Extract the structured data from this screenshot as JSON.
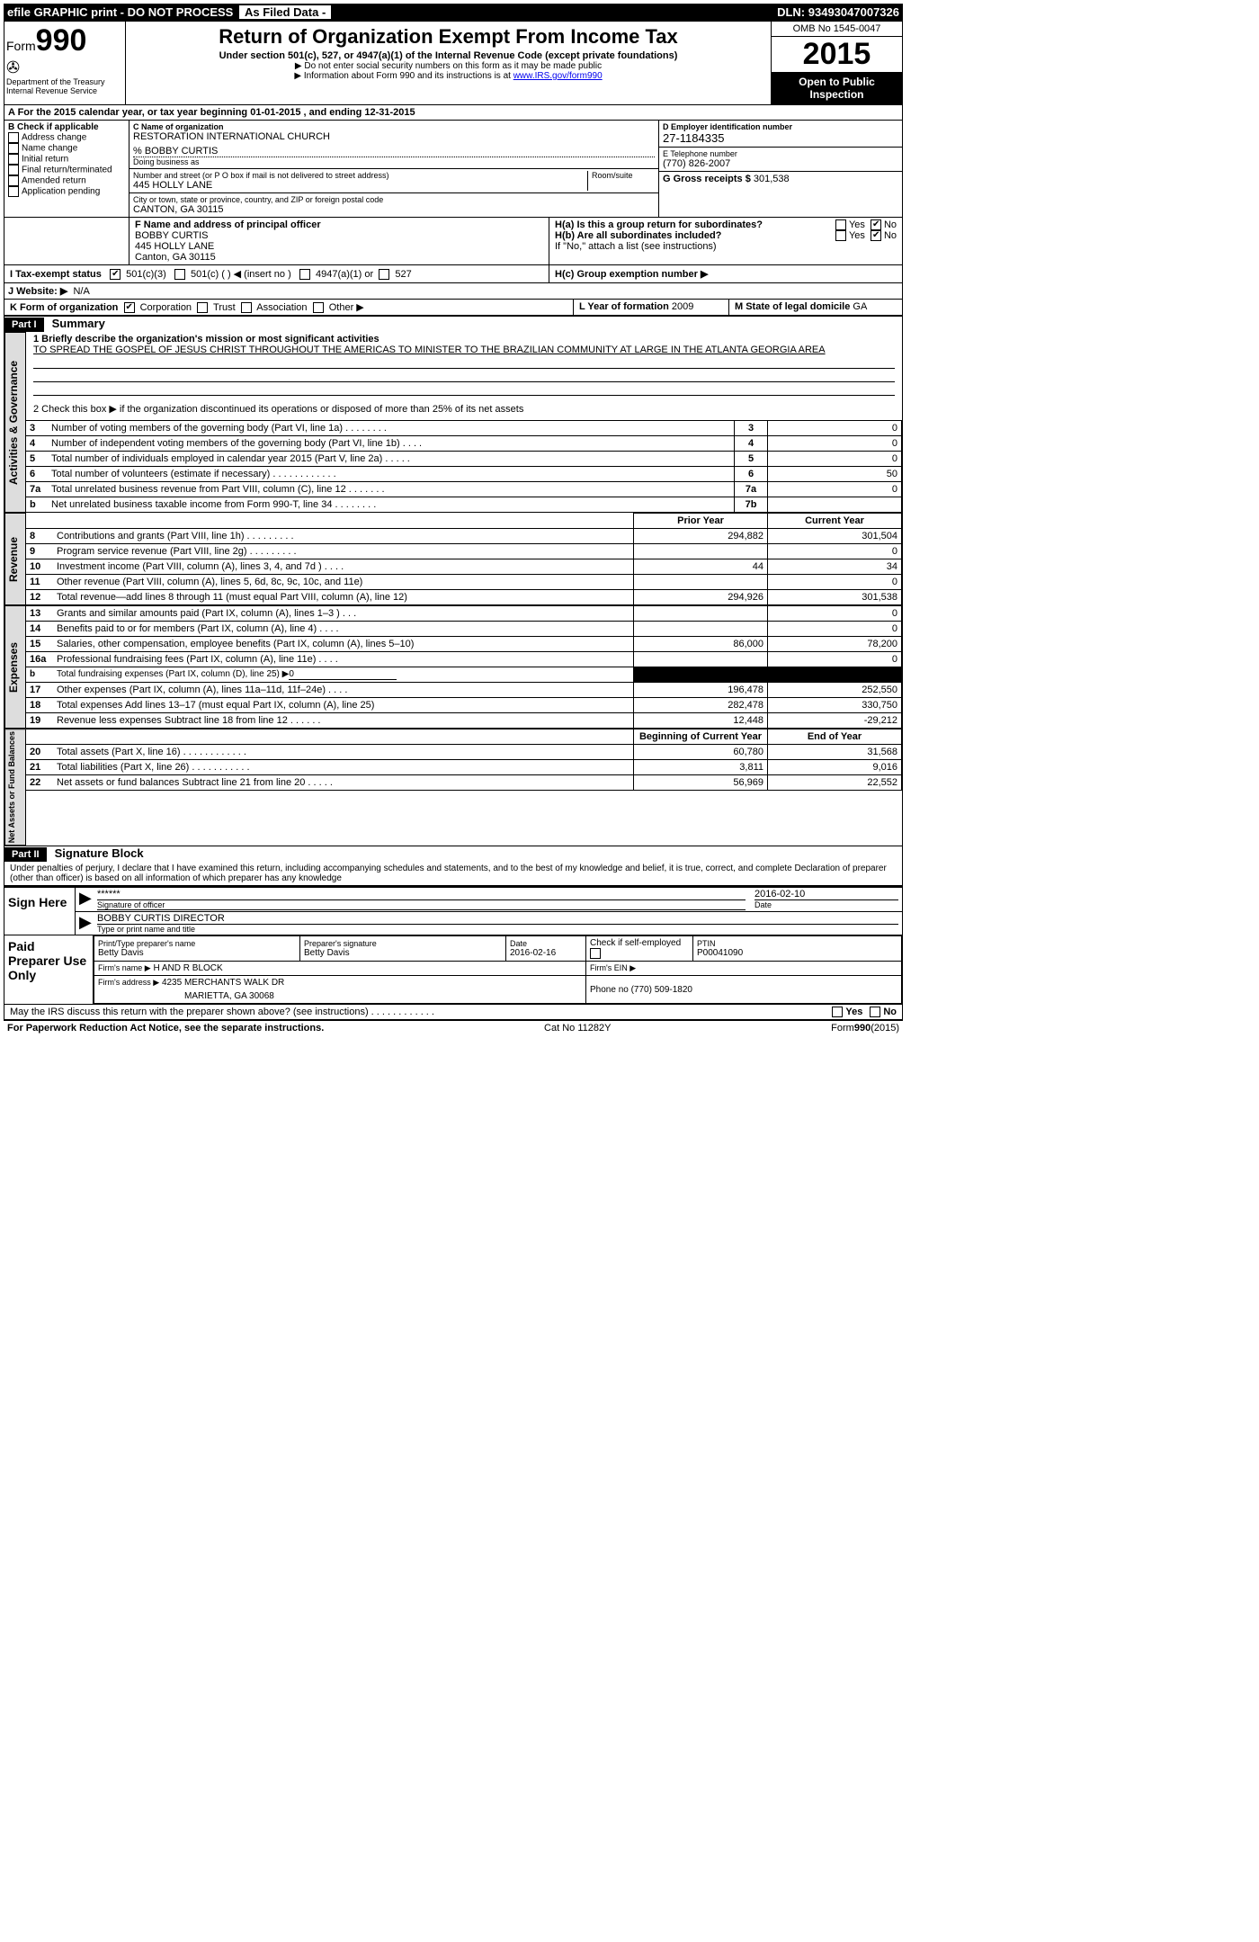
{
  "topbar": {
    "left": "efile GRAPHIC print - DO NOT PROCESS",
    "mid": "As Filed Data -",
    "dln_label": "DLN:",
    "dln": "93493047007326"
  },
  "header": {
    "form_prefix": "Form",
    "form_no": "990",
    "dept": "Department of the Treasury",
    "irs": "Internal Revenue Service",
    "title": "Return of Organization Exempt From Income Tax",
    "subtitle": "Under section 501(c), 527, or 4947(a)(1) of the Internal Revenue Code (except private foundations)",
    "note1": "▶ Do not enter social security numbers on this form as it may be made public",
    "note2_prefix": "▶ Information about Form 990 and its instructions is at ",
    "note2_link": "www.IRS.gov/form990",
    "omb": "OMB No 1545-0047",
    "year": "2015",
    "open": "Open to Public Inspection"
  },
  "lineA": {
    "prefix": "A  For the 2015 calendar year, or tax year beginning ",
    "begin": "01-01-2015",
    "mid": " , and ending ",
    "end": "12-31-2015"
  },
  "colB": {
    "heading": "B  Check if applicable",
    "items": [
      "Address change",
      "Name change",
      "Initial return",
      "Final return/terminated",
      "Amended return",
      "Application pending"
    ]
  },
  "colC": {
    "name_label": "C Name of organization",
    "name": "RESTORATION INTERNATIONAL CHURCH",
    "care_of": "% BOBBY CURTIS",
    "dba_label": "Doing business as",
    "dba": "",
    "street_label": "Number and street (or P O box if mail is not delivered to street address)",
    "room_label": "Room/suite",
    "street": "445 HOLLY LANE",
    "city_label": "City or town, state or province, country, and ZIP or foreign postal code",
    "city": "CANTON, GA  30115"
  },
  "colDE": {
    "d_label": "D Employer identification number",
    "d_value": "27-1184335",
    "e_label": "E Telephone number",
    "e_value": "(770) 826-2007",
    "g_label": "G Gross receipts $",
    "g_value": "301,538"
  },
  "fh": {
    "f_label": "F   Name and address of principal officer",
    "f_name": "BOBBY CURTIS",
    "f_street": "445 HOLLY LANE",
    "f_city": "Canton, GA  30115",
    "ha_label": "H(a)  Is this a group return for subordinates?",
    "hb_label": "H(b)  Are all subordinates included?",
    "h_note": "If \"No,\" attach a list  (see instructions)",
    "hc_label": "H(c)   Group exemption number ▶",
    "yes": "Yes",
    "no": "No"
  },
  "i": {
    "label": "I  Tax-exempt status",
    "o501c3": "501(c)(3)",
    "o501c": "501(c) (  ) ◀ (insert no )",
    "o4947": "4947(a)(1) or",
    "o527": "527"
  },
  "j": {
    "label": "J  Website: ▶",
    "value": "N/A"
  },
  "k": {
    "label": "K Form of organization",
    "opts": [
      "Corporation",
      "Trust",
      "Association",
      "Other ▶"
    ],
    "l_label": "L Year of formation",
    "l_value": "2009",
    "m_label": "M State of legal domicile",
    "m_value": "GA"
  },
  "partI": {
    "title": "Part I",
    "heading": "Summary",
    "q1": "1 Briefly describe the organization's mission or most significant activities",
    "mission": "TO SPREAD THE GOSPEL OF JESUS CHRIST THROUGHOUT THE AMERICAS  TO MINISTER TO THE BRAZILIAN COMMUNITY AT LARGE IN THE ATLANTA GEORGIA AREA",
    "q2": "2  Check this box ▶     if the organization discontinued its operations or disposed of more than 25% of its net assets"
  },
  "gov_rows": [
    {
      "n": "3",
      "t": "Number of voting members of the governing body (Part VI, line 1a)  .   .   .   .   .   .   .   .",
      "box": "3",
      "v": "0"
    },
    {
      "n": "4",
      "t": "Number of independent voting members of the governing body (Part VI, line 1b)   .   .   .   .",
      "box": "4",
      "v": "0"
    },
    {
      "n": "5",
      "t": "Total number of individuals employed in calendar year 2015 (Part V, line 2a)   .   .   .   .   .",
      "box": "5",
      "v": "0"
    },
    {
      "n": "6",
      "t": "Total number of volunteers (estimate if necessary)   .   .   .   .   .   .   .   .   .   .   .   .",
      "box": "6",
      "v": "50"
    },
    {
      "n": "7a",
      "t": "Total unrelated business revenue from Part VIII, column (C), line 12   .   .   .   .   .   .   .",
      "box": "7a",
      "v": "0"
    },
    {
      "n": "b",
      "t": "Net unrelated business taxable income from Form 990-T, line 34   .   .   .   .   .   .   .   .",
      "box": "7b",
      "v": ""
    }
  ],
  "two_col_header": {
    "prior": "Prior Year",
    "current": "Current Year"
  },
  "revenue": [
    {
      "n": "8",
      "t": "Contributions and grants (Part VIII, line 1h)   .   .   .   .   .   .   .   .   .",
      "p": "294,882",
      "c": "301,504"
    },
    {
      "n": "9",
      "t": "Program service revenue (Part VIII, line 2g)   .   .   .   .   .   .   .   .   .",
      "p": "",
      "c": "0"
    },
    {
      "n": "10",
      "t": "Investment income (Part VIII, column (A), lines 3, 4, and 7d )   .   .   .   .",
      "p": "44",
      "c": "34"
    },
    {
      "n": "11",
      "t": "Other revenue (Part VIII, column (A), lines 5, 6d, 8c, 9c, 10c, and 11e)",
      "p": "",
      "c": "0"
    },
    {
      "n": "12",
      "t": "Total revenue—add lines 8 through 11 (must equal Part VIII, column (A), line 12)",
      "p": "294,926",
      "c": "301,538"
    }
  ],
  "expenses": [
    {
      "n": "13",
      "t": "Grants and similar amounts paid (Part IX, column (A), lines 1–3 )   .   .   .",
      "p": "",
      "c": "0"
    },
    {
      "n": "14",
      "t": "Benefits paid to or for members (Part IX, column (A), line 4)   .   .   .   .",
      "p": "",
      "c": "0"
    },
    {
      "n": "15",
      "t": "Salaries, other compensation, employee benefits (Part IX, column (A), lines 5–10)",
      "p": "86,000",
      "c": "78,200"
    },
    {
      "n": "16a",
      "t": "Professional fundraising fees (Part IX, column (A), line 11e)   .   .   .   .",
      "p": "",
      "c": "0"
    },
    {
      "n": "b",
      "t": "Total fundraising expenses (Part IX, column (D), line 25) ▶",
      "extra": "0",
      "blk": true
    },
    {
      "n": "17",
      "t": "Other expenses (Part IX, column (A), lines 11a–11d, 11f–24e)   .   .   .   .",
      "p": "196,478",
      "c": "252,550"
    },
    {
      "n": "18",
      "t": "Total expenses  Add lines 13–17 (must equal Part IX, column (A), line 25)",
      "p": "282,478",
      "c": "330,750"
    },
    {
      "n": "19",
      "t": "Revenue less expenses  Subtract line 18 from line 12   .   .   .   .   .   .",
      "p": "12,448",
      "c": "-29,212"
    }
  ],
  "na_header": {
    "begin": "Beginning of Current Year",
    "end": "End of Year"
  },
  "netassets": [
    {
      "n": "20",
      "t": "Total assets (Part X, line 16)   .   .   .   .   .   .   .   .   .   .   .   .",
      "p": "60,780",
      "c": "31,568"
    },
    {
      "n": "21",
      "t": "Total liabilities (Part X, line 26)   .   .   .   .   .   .   .   .   .   .   .",
      "p": "3,811",
      "c": "9,016"
    },
    {
      "n": "22",
      "t": "Net assets or fund balances  Subtract line 21 from line 20   .   .   .   .   .",
      "p": "56,969",
      "c": "22,552"
    }
  ],
  "partII": {
    "title": "Part II",
    "heading": "Signature Block",
    "perjury": "Under penalties of perjury, I declare that I have examined this return, including accompanying schedules and statements, and to the best of my knowledge and belief, it is true, correct, and complete  Declaration of preparer (other than officer) is based on all information of which preparer has any knowledge"
  },
  "sign": {
    "label": "Sign Here",
    "sig_mask": "******",
    "sig_label": "Signature of officer",
    "date": "2016-02-10",
    "date_label": "Date",
    "name": "BOBBY CURTIS DIRECTOR",
    "name_label": "Type or print name and title"
  },
  "prep": {
    "label": "Paid Preparer Use Only",
    "r1": {
      "a": "Print/Type preparer's name",
      "av": "Betty Davis",
      "b": "Preparer's signature",
      "bv": "Betty Davis",
      "c": "Date",
      "cv": "2016-02-16",
      "d": "Check     if self-employed",
      "e": "PTIN",
      "ev": "P00041090"
    },
    "r2": {
      "a": "Firm's name    ▶",
      "av": "H AND R BLOCK",
      "b": "Firm's EIN ▶",
      "bv": ""
    },
    "r3": {
      "a": "Firm's address ▶",
      "av": "4235 MERCHANTS WALK DR",
      "b": "Phone no  (770) 509-1820"
    },
    "r3b": "MARIETTA, GA  30068"
  },
  "may_discuss": "May the IRS discuss this return with the preparer shown above? (see instructions)   .   .   .   .   .   .   .   .   .   .   .   .",
  "footer": {
    "left": "For Paperwork Reduction Act Notice, see the separate instructions.",
    "mid": "Cat No  11282Y",
    "right": "Form 990 (2015)"
  },
  "sidebars": {
    "gov": "Activities & Governance",
    "rev": "Revenue",
    "exp": "Expenses",
    "na": "Net Assets or Fund Balances"
  }
}
